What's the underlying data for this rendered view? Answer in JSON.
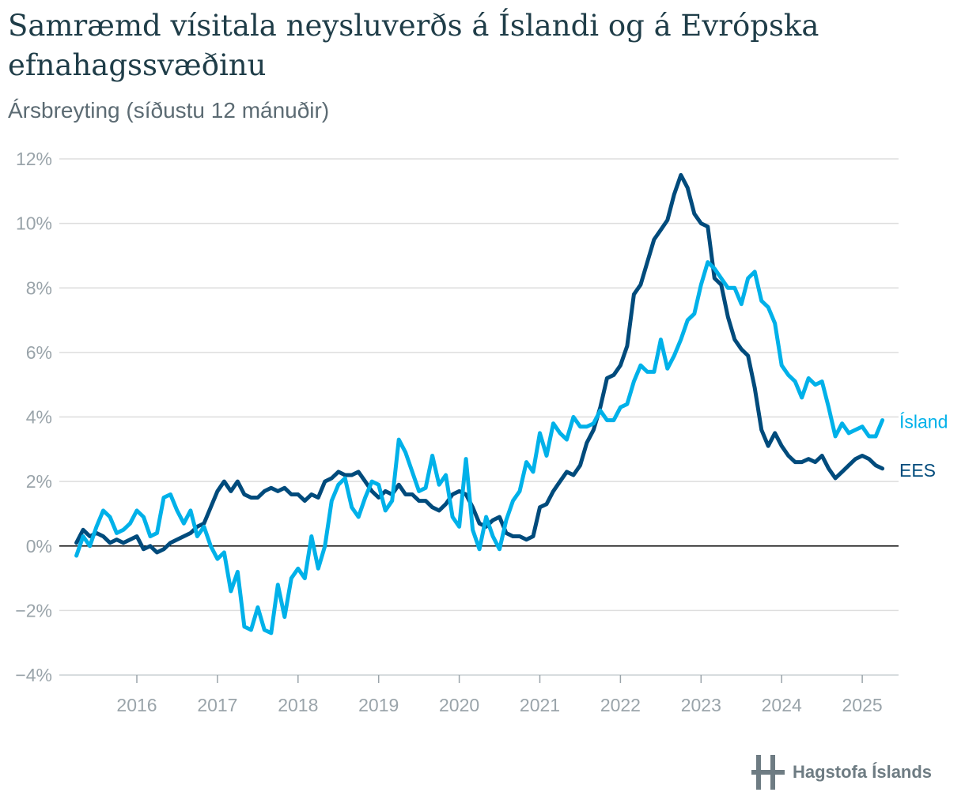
{
  "header": {
    "title": "Samræmd vísitala neysluverðs á Íslandi og á Evrópska efnahagssvæðinu",
    "subtitle": "Ársbreyting (síðustu 12 mánuðir)"
  },
  "footer": {
    "logo_text": "Hagstofa Íslands"
  },
  "colors": {
    "island": "#00b1e9",
    "ees": "#004b7c",
    "grid": "#dddddd",
    "zero_line": "#000000",
    "ticks": "#9aa4aa"
  },
  "chart_data": {
    "type": "line",
    "title": "Samræmd vísitala neysluverðs á Íslandi og á Evrópska efnahagssvæðinu",
    "subtitle": "Ársbreyting (síðustu 12 mánuðir)",
    "xlabel": "",
    "ylabel": "",
    "ylim": [
      -4,
      12
    ],
    "yticks": [
      -4,
      -2,
      0,
      2,
      4,
      6,
      8,
      10,
      12
    ],
    "ytick_labels": [
      "−4%",
      "−2%",
      "0%",
      "2%",
      "4%",
      "6%",
      "8%",
      "10%",
      "12%"
    ],
    "xticks": [
      "2016",
      "2017",
      "2018",
      "2019",
      "2020",
      "2021",
      "2022",
      "2023",
      "2024",
      "2025"
    ],
    "x_range": [
      "2015-04",
      "2025-04"
    ],
    "grid": "horizontal",
    "legend": "end-of-line labels",
    "series": [
      {
        "name": "Ísland",
        "color": "#00b1e9",
        "start": "2015-04",
        "values": [
          -0.3,
          0.3,
          0.0,
          0.6,
          1.1,
          0.9,
          0.4,
          0.5,
          0.7,
          1.1,
          0.9,
          0.3,
          0.4,
          1.5,
          1.6,
          1.1,
          0.7,
          1.1,
          0.3,
          0.6,
          0.0,
          -0.4,
          -0.2,
          -1.4,
          -0.8,
          -2.5,
          -2.6,
          -1.9,
          -2.6,
          -2.7,
          -1.2,
          -2.2,
          -1.0,
          -0.7,
          -1.0,
          0.3,
          -0.7,
          0.0,
          1.4,
          1.9,
          2.1,
          1.2,
          0.9,
          1.5,
          2.0,
          1.9,
          1.1,
          1.4,
          3.3,
          2.9,
          2.3,
          1.7,
          1.8,
          2.8,
          1.9,
          2.2,
          0.9,
          0.6,
          2.7,
          0.5,
          -0.1,
          0.9,
          0.3,
          -0.1,
          0.8,
          1.4,
          1.7,
          2.6,
          2.3,
          3.5,
          2.8,
          3.8,
          3.5,
          3.3,
          4.0,
          3.7,
          3.7,
          3.8,
          4.2,
          3.9,
          3.9,
          4.3,
          4.4,
          5.1,
          5.6,
          5.4,
          5.4,
          6.4,
          5.5,
          5.9,
          6.4,
          7.0,
          7.2,
          8.1,
          8.8,
          8.6,
          8.3,
          8.0,
          8.0,
          7.5,
          8.3,
          8.5,
          7.6,
          7.4,
          6.9,
          5.6,
          5.3,
          5.1,
          4.6,
          5.2,
          5.0,
          5.1,
          4.3,
          3.4,
          3.8,
          3.5,
          3.6,
          3.7,
          3.4,
          3.4,
          3.9
        ]
      },
      {
        "name": "EES",
        "color": "#004b7c",
        "start": "2015-04",
        "values": [
          0.1,
          0.5,
          0.3,
          0.4,
          0.3,
          0.1,
          0.2,
          0.1,
          0.2,
          0.3,
          -0.1,
          0.0,
          -0.2,
          -0.1,
          0.1,
          0.2,
          0.3,
          0.4,
          0.6,
          0.7,
          1.2,
          1.7,
          2.0,
          1.7,
          2.0,
          1.6,
          1.5,
          1.5,
          1.7,
          1.8,
          1.7,
          1.8,
          1.6,
          1.6,
          1.4,
          1.6,
          1.5,
          2.0,
          2.1,
          2.3,
          2.2,
          2.2,
          2.3,
          2.0,
          1.7,
          1.5,
          1.7,
          1.6,
          1.9,
          1.6,
          1.6,
          1.4,
          1.4,
          1.2,
          1.1,
          1.3,
          1.6,
          1.7,
          1.6,
          1.2,
          0.7,
          0.6,
          0.8,
          0.9,
          0.4,
          0.3,
          0.3,
          0.2,
          0.3,
          1.2,
          1.3,
          1.7,
          2.0,
          2.3,
          2.2,
          2.5,
          3.2,
          3.6,
          4.3,
          5.2,
          5.3,
          5.6,
          6.2,
          7.8,
          8.1,
          8.8,
          9.5,
          9.8,
          10.1,
          10.9,
          11.5,
          11.1,
          10.3,
          10.0,
          9.9,
          8.3,
          8.1,
          7.1,
          6.4,
          6.1,
          5.9,
          4.9,
          3.6,
          3.1,
          3.5,
          3.1,
          2.8,
          2.6,
          2.6,
          2.7,
          2.6,
          2.8,
          2.4,
          2.1,
          2.3,
          2.5,
          2.7,
          2.8,
          2.7,
          2.5,
          2.4
        ]
      }
    ]
  }
}
